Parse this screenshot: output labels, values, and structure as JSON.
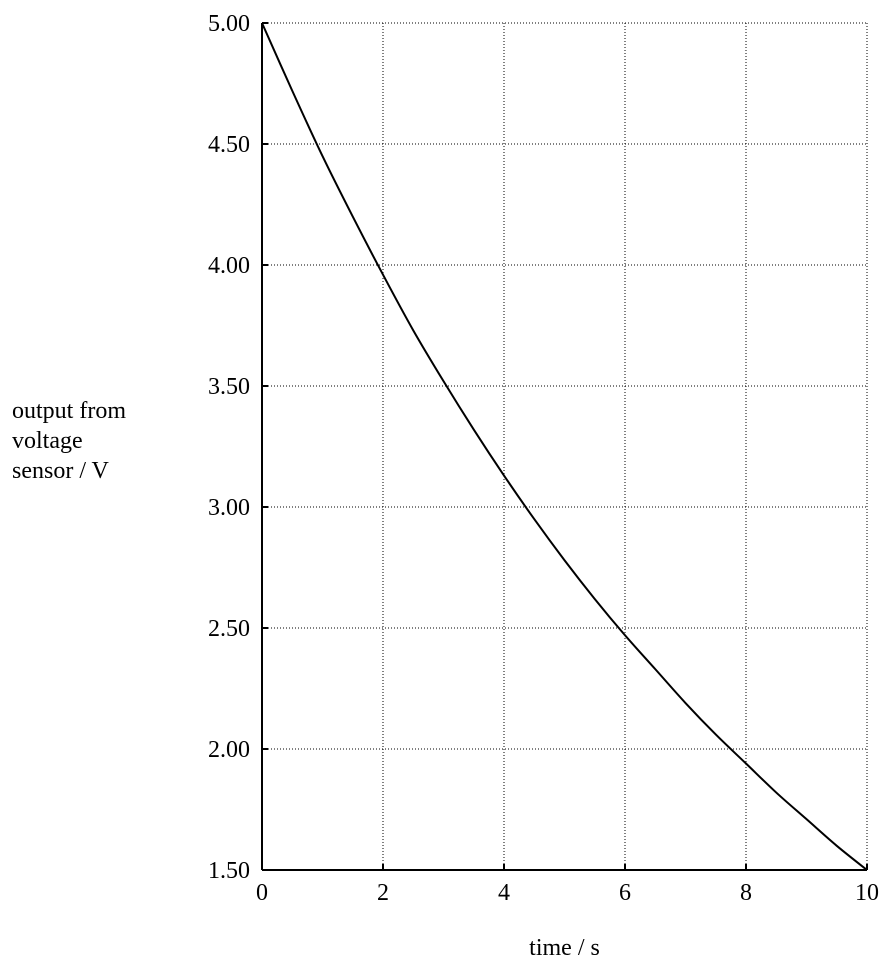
{
  "chart_data": {
    "type": "line",
    "title": "",
    "xlabel": "time / s",
    "ylabel_lines": [
      "output from",
      "voltage",
      "sensor / V"
    ],
    "xlim": [
      0,
      10
    ],
    "ylim": [
      1.5,
      5.0
    ],
    "x_ticks": [
      0,
      2,
      4,
      6,
      8,
      10
    ],
    "x_tick_labels": [
      "0",
      "2",
      "4",
      "6",
      "8",
      "10"
    ],
    "y_ticks": [
      1.5,
      2.0,
      2.5,
      3.0,
      3.5,
      4.0,
      4.5,
      5.0
    ],
    "y_tick_labels": [
      "1.50",
      "2.00",
      "2.50",
      "3.00",
      "3.50",
      "4.00",
      "4.50",
      "5.00"
    ],
    "grid": true,
    "series": [
      {
        "x": [
          0,
          0.5,
          1,
          1.5,
          2,
          2.5,
          3,
          3.5,
          4,
          4.5,
          5,
          5.5,
          6,
          6.5,
          7,
          7.5,
          8,
          8.5,
          9,
          9.5,
          10
        ],
        "y": [
          5.0,
          4.72,
          4.45,
          4.2,
          3.96,
          3.73,
          3.52,
          3.32,
          3.13,
          2.95,
          2.78,
          2.62,
          2.47,
          2.33,
          2.19,
          2.06,
          1.94,
          1.82,
          1.71,
          1.6,
          1.5
        ]
      }
    ]
  }
}
